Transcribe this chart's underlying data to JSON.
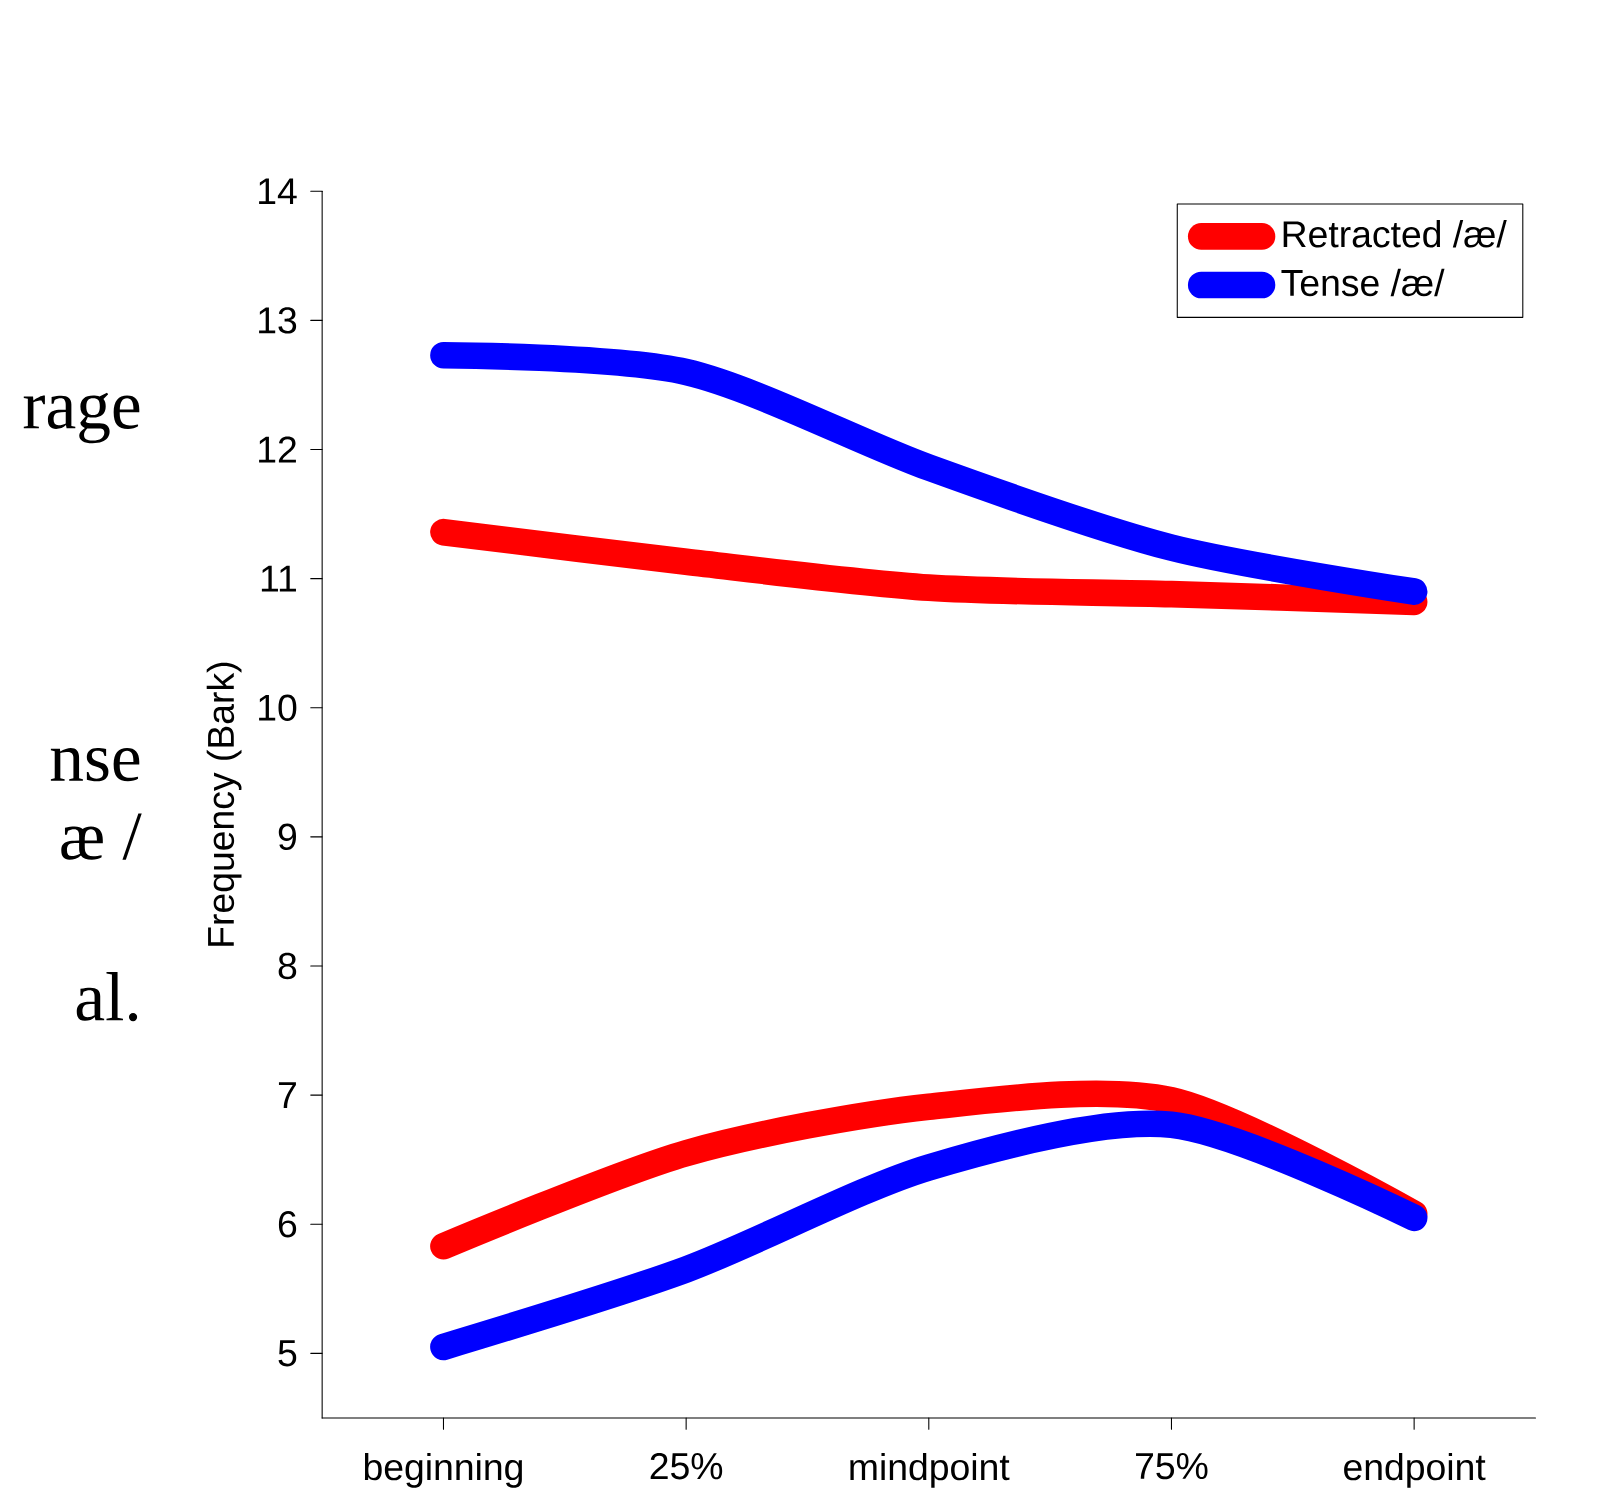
{
  "chart_data": {
    "type": "line",
    "ylabel": "Frequency (Bark)",
    "categories": [
      "beginning",
      "25%",
      "mindpoint",
      "75%",
      "endpoint"
    ],
    "series": [
      {
        "name": "Retracted /æ/",
        "color": "#ff0000",
        "values": [
          11.36,
          11.13,
          10.93,
          10.88,
          10.82
        ]
      },
      {
        "name": "Tense /æ/",
        "color": "#0000ff",
        "values": [
          12.73,
          12.6,
          11.86,
          11.24,
          10.9
        ]
      },
      {
        "color": "#ff0000",
        "values": [
          5.83,
          6.55,
          6.91,
          6.96,
          6.08
        ]
      },
      {
        "color": "#0000ff",
        "values": [
          5.05,
          5.65,
          6.44,
          6.77,
          6.05
        ]
      }
    ],
    "ylim": [
      4.5,
      14
    ],
    "yticks": [
      5,
      6,
      7,
      8,
      9,
      10,
      11,
      12,
      13,
      14
    ],
    "grid": false,
    "legend": "top right",
    "marker": "none",
    "line_style": "solid",
    "annotations": [
      "rage",
      "nse",
      "æ /",
      "al."
    ]
  }
}
